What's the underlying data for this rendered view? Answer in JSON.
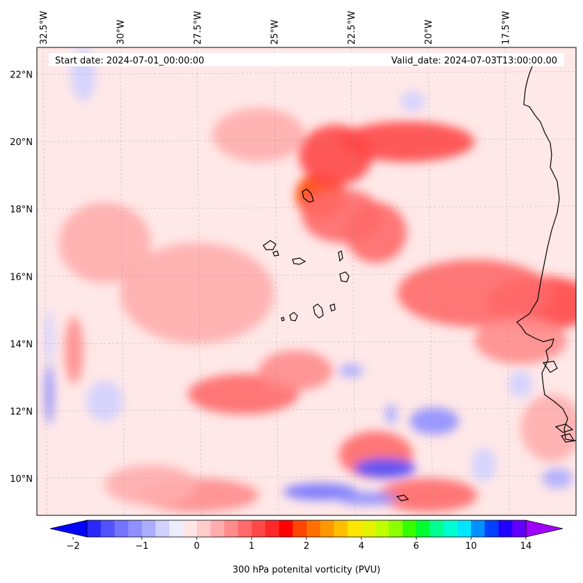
{
  "map": {
    "start_label": "Start date: 2024-07-01_00:00:00",
    "valid_label": "Valid_date: 2024-07-03T13:00:00.00",
    "extent": {
      "lon_min": -32.7,
      "lon_max": -15.2,
      "lat_min": 8.9,
      "lat_max": 22.8
    },
    "lon_ticks": [
      {
        "value": -32.5,
        "label": "32.5°W"
      },
      {
        "value": -30.0,
        "label": "30°W"
      },
      {
        "value": -27.5,
        "label": "27.5°W"
      },
      {
        "value": -25.0,
        "label": "25°W"
      },
      {
        "value": -22.5,
        "label": "22.5°W"
      },
      {
        "value": -20.0,
        "label": "20°W"
      },
      {
        "value": -17.5,
        "label": "17.5°W"
      }
    ],
    "lat_ticks": [
      {
        "value": 10,
        "label": "10°N"
      },
      {
        "value": 12,
        "label": "12°N"
      },
      {
        "value": 14,
        "label": "14°N"
      },
      {
        "value": 16,
        "label": "16°N"
      },
      {
        "value": 18,
        "label": "18°N"
      },
      {
        "value": 20,
        "label": "20°N"
      },
      {
        "value": 22,
        "label": "22°N"
      }
    ],
    "field_features": [
      {
        "lon": -23.5,
        "lat": 18.4,
        "pv": 2.0,
        "rx": 0.8,
        "ry": 0.7
      },
      {
        "lon": -23.0,
        "lat": 19.6,
        "pv": 1.4,
        "rx": 1.2,
        "ry": 0.9
      },
      {
        "lon": -20.7,
        "lat": 20.0,
        "pv": 1.3,
        "rx": 2.2,
        "ry": 0.6
      },
      {
        "lon": -21.7,
        "lat": 17.3,
        "pv": 1.2,
        "rx": 1.0,
        "ry": 0.9
      },
      {
        "lon": -22.8,
        "lat": 17.8,
        "pv": 1.0,
        "rx": 1.3,
        "ry": 0.8
      },
      {
        "lon": -16.3,
        "lat": 15.2,
        "pv": 1.3,
        "rx": 1.8,
        "ry": 0.8
      },
      {
        "lon": -18.5,
        "lat": 15.5,
        "pv": 1.0,
        "rx": 2.5,
        "ry": 1.0
      },
      {
        "lon": -17.0,
        "lat": 14.1,
        "pv": 0.9,
        "rx": 1.5,
        "ry": 0.7
      },
      {
        "lon": -26.0,
        "lat": 12.5,
        "pv": 1.0,
        "rx": 1.8,
        "ry": 0.6
      },
      {
        "lon": -24.3,
        "lat": 13.2,
        "pv": 0.8,
        "rx": 1.2,
        "ry": 0.6
      },
      {
        "lon": -21.7,
        "lat": 10.7,
        "pv": 1.2,
        "rx": 1.2,
        "ry": 0.7
      },
      {
        "lon": -20.0,
        "lat": 9.5,
        "pv": 1.0,
        "rx": 1.6,
        "ry": 0.5
      },
      {
        "lon": -27.5,
        "lat": 9.5,
        "pv": 0.9,
        "rx": 2.0,
        "ry": 0.5
      },
      {
        "lon": -29.0,
        "lat": 9.8,
        "pv": 0.6,
        "rx": 1.5,
        "ry": 0.6
      },
      {
        "lon": -31.5,
        "lat": 13.8,
        "pv": 0.8,
        "rx": 0.3,
        "ry": 1.0
      },
      {
        "lon": -25.5,
        "lat": 20.2,
        "pv": 0.7,
        "rx": 1.5,
        "ry": 0.8
      },
      {
        "lon": -30.5,
        "lat": 17.0,
        "pv": 0.6,
        "rx": 1.5,
        "ry": 1.2
      },
      {
        "lon": -16.0,
        "lat": 11.5,
        "pv": 0.7,
        "rx": 1.0,
        "ry": 1.0
      },
      {
        "lon": -27.5,
        "lat": 15.5,
        "pv": 0.5,
        "rx": 2.5,
        "ry": 1.5
      },
      {
        "lon": -21.4,
        "lat": 10.3,
        "pv": -1.5,
        "rx": 1.0,
        "ry": 0.3
      },
      {
        "lon": -23.5,
        "lat": 9.6,
        "pv": -1.1,
        "rx": 1.2,
        "ry": 0.25
      },
      {
        "lon": -22.0,
        "lat": 9.4,
        "pv": -0.9,
        "rx": 1.0,
        "ry": 0.2
      },
      {
        "lon": -19.8,
        "lat": 11.7,
        "pv": -0.9,
        "rx": 0.8,
        "ry": 0.4
      },
      {
        "lon": -21.2,
        "lat": 11.9,
        "pv": -0.7,
        "rx": 0.2,
        "ry": 0.3
      },
      {
        "lon": -32.3,
        "lat": 12.5,
        "pv": -1.0,
        "rx": 0.15,
        "ry": 0.9
      },
      {
        "lon": -32.3,
        "lat": 14.2,
        "pv": -0.5,
        "rx": 0.15,
        "ry": 0.8
      },
      {
        "lon": -31.2,
        "lat": 22.0,
        "pv": -0.5,
        "rx": 0.4,
        "ry": 0.8
      },
      {
        "lon": -22.5,
        "lat": 13.2,
        "pv": -0.7,
        "rx": 0.4,
        "ry": 0.2
      },
      {
        "lon": -15.8,
        "lat": 10.0,
        "pv": -0.7,
        "rx": 0.5,
        "ry": 0.3
      },
      {
        "lon": -18.2,
        "lat": 10.4,
        "pv": -0.5,
        "rx": 0.4,
        "ry": 0.5
      },
      {
        "lon": -17.0,
        "lat": 12.8,
        "pv": -0.5,
        "rx": 0.4,
        "ry": 0.4
      },
      {
        "lon": -20.5,
        "lat": 21.2,
        "pv": -0.4,
        "rx": 0.4,
        "ry": 0.3
      },
      {
        "lon": -30.5,
        "lat": 12.3,
        "pv": -0.3,
        "rx": 0.6,
        "ry": 0.6
      }
    ],
    "coastline_color": "#000000"
  },
  "colorbar": {
    "title": "300 hPa potenital vorticity (PVU)",
    "tick_labels": [
      "−2",
      "−1",
      "0",
      "1",
      "2",
      "4",
      "6",
      "10",
      "14"
    ],
    "colors": [
      "#0000ff",
      "#2929ff",
      "#5252ff",
      "#7474ff",
      "#8f8fff",
      "#adadff",
      "#d1d1ff",
      "#ececff",
      "#ffe6e6",
      "#ffcccc",
      "#ffadad",
      "#ff8c8c",
      "#ff6a6a",
      "#ff4848",
      "#ff2828",
      "#ff0000",
      "#ff4500",
      "#ff7000",
      "#ff9800",
      "#ffbf00",
      "#ffe600",
      "#e6f200",
      "#c0ff00",
      "#8cff00",
      "#38ff00",
      "#00ff30",
      "#00ff90",
      "#00ffd0",
      "#00e6ff",
      "#0090ff",
      "#0040ff",
      "#2000ff",
      "#6000ff",
      "#a000ff"
    ],
    "levels": [
      -2,
      -1.75,
      -1.5,
      -1.25,
      -1,
      -0.75,
      -0.5,
      -0.25,
      0,
      0.25,
      0.5,
      0.75,
      1,
      1.25,
      1.5,
      1.75,
      2,
      2.5,
      3,
      3.5,
      4,
      4.5,
      5,
      5.5,
      6,
      7,
      8,
      9,
      10,
      11,
      12,
      13,
      14,
      15,
      16
    ]
  }
}
